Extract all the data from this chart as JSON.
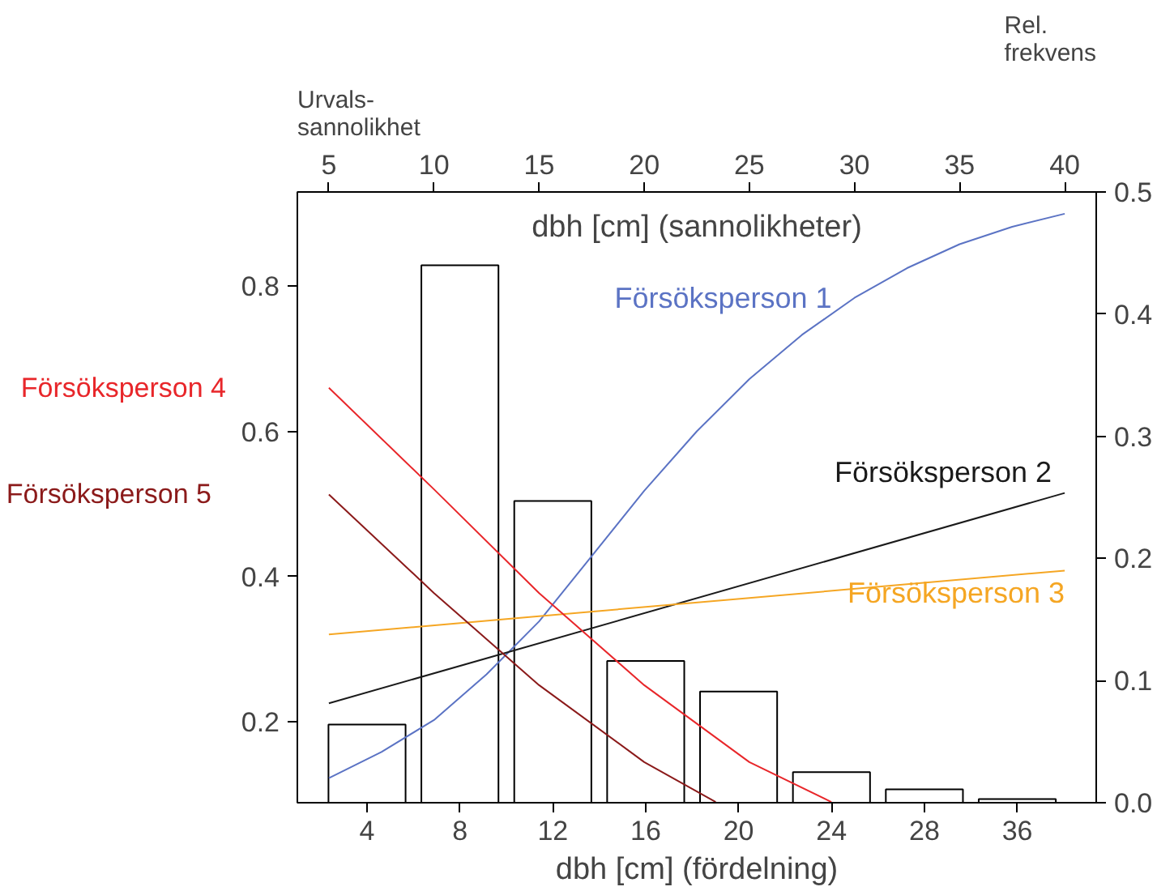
{
  "chart_data": {
    "type": "bar",
    "xlabel": "dbh [cm] (fördelning)",
    "x2label": "dbh [cm] (sannolikheter)",
    "ylabel": "Urvals-\nsannolikhet",
    "y2label": "Rel.\nfrekvens",
    "categories": [
      "4",
      "8",
      "12",
      "16",
      "20",
      "24",
      "28",
      "36"
    ],
    "x2lim": [
      3.5,
      41.5
    ],
    "x2ticks": [
      5,
      10,
      15,
      20,
      25,
      30,
      35,
      40
    ],
    "ylim": [
      0.088,
      0.93
    ],
    "yticks": [
      0.2,
      0.4,
      0.6,
      0.8
    ],
    "y2lim": [
      0,
      0.5
    ],
    "y2ticks": [
      {
        "value": 0,
        "label": "0.0"
      },
      0.1,
      0.2,
      0.3,
      0.4,
      0.5
    ],
    "series": [
      {
        "axis": "y2",
        "color": "#ffffff",
        "values": [
          0.064,
          0.44,
          0.247,
          0.116,
          0.091,
          0.025,
          0.011,
          0.003
        ]
      },
      {
        "type": "line",
        "axis": "x2",
        "name": "Försöksperson 1",
        "color": "#5b73c4",
        "x": [
          5,
          7.5,
          10,
          12.5,
          15,
          17.5,
          20,
          22.5,
          25,
          27.5,
          30,
          32.5,
          35,
          37.5,
          40
        ],
        "values": [
          0.122,
          0.158,
          0.202,
          0.265,
          0.338,
          0.428,
          0.518,
          0.6,
          0.672,
          0.733,
          0.784,
          0.825,
          0.858,
          0.882,
          0.9
        ]
      },
      {
        "type": "line",
        "axis": "x2",
        "name": "Försöksperson 2",
        "color": "#1a1a1a",
        "x": [
          5,
          40
        ],
        "values": [
          0.225,
          0.515
        ]
      },
      {
        "type": "line",
        "axis": "x2",
        "name": "Försöksperson 3",
        "color": "#f5a623",
        "x": [
          5,
          40
        ],
        "values": [
          0.32,
          0.408
        ]
      },
      {
        "type": "line",
        "axis": "x2",
        "name": "Försöksperson 4",
        "color": "#e8262a",
        "x": [
          5,
          10,
          15,
          20,
          25,
          28.9
        ],
        "values": [
          0.66,
          0.52,
          0.377,
          0.25,
          0.144,
          0.089
        ]
      },
      {
        "type": "line",
        "axis": "x2",
        "name": "Försöksperson 5",
        "color": "#8b1a1a",
        "x": [
          5,
          10,
          15,
          20,
          23.4
        ],
        "values": [
          0.513,
          0.377,
          0.25,
          0.144,
          0.089
        ]
      }
    ]
  }
}
